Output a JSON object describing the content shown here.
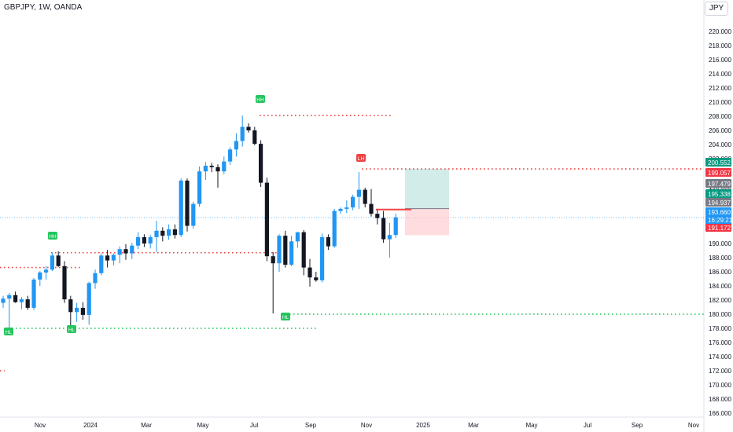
{
  "header": {
    "symbol": "GBPJPY, 1W, OANDA",
    "currency": "JPY"
  },
  "chart_data": {
    "type": "candlestick",
    "symbol": "GBPJPY",
    "interval": "1W",
    "source": "OANDA",
    "ylim": [
      165,
      222
    ],
    "y_ticks": [
      "166.000",
      "168.000",
      "170.000",
      "172.000",
      "174.000",
      "176.000",
      "178.000",
      "180.000",
      "182.000",
      "184.000",
      "186.000",
      "188.000",
      "190.000",
      "192.000",
      "194.000",
      "196.000",
      "198.000",
      "200.000",
      "202.000",
      "204.000",
      "206.000",
      "208.000",
      "210.000",
      "212.000",
      "214.000",
      "216.000",
      "218.000",
      "220.000"
    ],
    "x_ticks": [
      "Nov",
      "2024",
      "Mar",
      "May",
      "Jul",
      "Sep",
      "Nov",
      "2025",
      "Mar",
      "May",
      "Jul",
      "Sep",
      "Nov"
    ],
    "candles": [
      {
        "o": 181.6,
        "h": 182.6,
        "l": 180.9,
        "c": 182.2
      },
      {
        "o": 182.2,
        "h": 183.0,
        "l": 177.7,
        "c": 182.7
      },
      {
        "o": 182.7,
        "h": 183.2,
        "l": 181.6,
        "c": 181.7
      },
      {
        "o": 181.7,
        "h": 182.4,
        "l": 180.7,
        "c": 182.1
      },
      {
        "o": 182.1,
        "h": 182.6,
        "l": 180.6,
        "c": 180.9
      },
      {
        "o": 180.9,
        "h": 185.1,
        "l": 180.6,
        "c": 184.9
      },
      {
        "o": 184.9,
        "h": 186.1,
        "l": 184.0,
        "c": 185.9
      },
      {
        "o": 185.9,
        "h": 186.8,
        "l": 184.9,
        "c": 186.3
      },
      {
        "o": 186.3,
        "h": 188.7,
        "l": 186.1,
        "c": 188.3
      },
      {
        "o": 188.3,
        "h": 188.9,
        "l": 186.7,
        "c": 186.8
      },
      {
        "o": 186.8,
        "h": 187.5,
        "l": 181.6,
        "c": 182.1
      },
      {
        "o": 182.1,
        "h": 182.6,
        "l": 177.6,
        "c": 180.3
      },
      {
        "o": 180.3,
        "h": 181.6,
        "l": 178.9,
        "c": 180.9
      },
      {
        "o": 180.9,
        "h": 181.7,
        "l": 179.2,
        "c": 179.9
      },
      {
        "o": 179.9,
        "h": 184.6,
        "l": 178.5,
        "c": 184.4
      },
      {
        "o": 184.4,
        "h": 186.3,
        "l": 183.6,
        "c": 185.8
      },
      {
        "o": 185.8,
        "h": 188.6,
        "l": 185.5,
        "c": 188.3
      },
      {
        "o": 188.3,
        "h": 189.1,
        "l": 186.6,
        "c": 187.6
      },
      {
        "o": 187.6,
        "h": 188.6,
        "l": 186.9,
        "c": 188.4
      },
      {
        "o": 188.4,
        "h": 189.6,
        "l": 187.2,
        "c": 189.2
      },
      {
        "o": 189.2,
        "h": 189.9,
        "l": 187.7,
        "c": 188.6
      },
      {
        "o": 188.6,
        "h": 190.1,
        "l": 187.8,
        "c": 189.7
      },
      {
        "o": 189.7,
        "h": 191.6,
        "l": 189.2,
        "c": 190.9
      },
      {
        "o": 190.9,
        "h": 191.3,
        "l": 189.5,
        "c": 190.0
      },
      {
        "o": 190.0,
        "h": 191.2,
        "l": 189.3,
        "c": 190.9
      },
      {
        "o": 190.9,
        "h": 193.2,
        "l": 188.8,
        "c": 191.8
      },
      {
        "o": 191.8,
        "h": 192.3,
        "l": 190.3,
        "c": 191.1
      },
      {
        "o": 191.1,
        "h": 192.7,
        "l": 190.5,
        "c": 192.0
      },
      {
        "o": 192.0,
        "h": 192.7,
        "l": 190.7,
        "c": 191.2
      },
      {
        "o": 191.2,
        "h": 199.2,
        "l": 190.9,
        "c": 198.9
      },
      {
        "o": 198.9,
        "h": 199.2,
        "l": 191.7,
        "c": 192.5
      },
      {
        "o": 192.5,
        "h": 195.9,
        "l": 192.1,
        "c": 195.6
      },
      {
        "o": 195.6,
        "h": 200.9,
        "l": 195.2,
        "c": 200.2
      },
      {
        "o": 200.2,
        "h": 201.5,
        "l": 199.0,
        "c": 201.0
      },
      {
        "o": 201.0,
        "h": 201.4,
        "l": 200.1,
        "c": 200.8
      },
      {
        "o": 200.8,
        "h": 201.2,
        "l": 197.9,
        "c": 200.2
      },
      {
        "o": 200.2,
        "h": 202.3,
        "l": 199.8,
        "c": 201.6
      },
      {
        "o": 201.6,
        "h": 203.6,
        "l": 201.1,
        "c": 203.3
      },
      {
        "o": 203.3,
        "h": 205.6,
        "l": 202.3,
        "c": 204.5
      },
      {
        "o": 204.5,
        "h": 208.1,
        "l": 203.7,
        "c": 206.5
      },
      {
        "o": 206.5,
        "h": 207.0,
        "l": 205.7,
        "c": 206.0
      },
      {
        "o": 206.0,
        "h": 206.5,
        "l": 203.9,
        "c": 204.1
      },
      {
        "o": 204.1,
        "h": 204.6,
        "l": 198.0,
        "c": 198.6
      },
      {
        "o": 198.6,
        "h": 199.3,
        "l": 187.5,
        "c": 188.2
      },
      {
        "o": 188.2,
        "h": 188.8,
        "l": 180.1,
        "c": 187.2
      },
      {
        "o": 187.2,
        "h": 191.3,
        "l": 186.0,
        "c": 191.1
      },
      {
        "o": 191.1,
        "h": 191.8,
        "l": 186.6,
        "c": 187.0
      },
      {
        "o": 187.0,
        "h": 191.1,
        "l": 186.8,
        "c": 190.3
      },
      {
        "o": 190.3,
        "h": 191.6,
        "l": 189.4,
        "c": 191.6
      },
      {
        "o": 191.6,
        "h": 191.9,
        "l": 185.5,
        "c": 186.6
      },
      {
        "o": 186.6,
        "h": 187.8,
        "l": 183.9,
        "c": 185.2
      },
      {
        "o": 185.2,
        "h": 186.0,
        "l": 184.6,
        "c": 184.8
      },
      {
        "o": 184.8,
        "h": 191.4,
        "l": 184.5,
        "c": 190.9
      },
      {
        "o": 190.9,
        "h": 191.3,
        "l": 189.1,
        "c": 189.6
      },
      {
        "o": 189.6,
        "h": 194.9,
        "l": 189.4,
        "c": 194.6
      },
      {
        "o": 194.6,
        "h": 195.1,
        "l": 194.2,
        "c": 194.9
      },
      {
        "o": 194.9,
        "h": 196.1,
        "l": 194.3,
        "c": 195.1
      },
      {
        "o": 195.1,
        "h": 196.9,
        "l": 194.7,
        "c": 196.6
      },
      {
        "o": 196.6,
        "h": 200.1,
        "l": 194.9,
        "c": 197.6
      },
      {
        "o": 197.6,
        "h": 197.9,
        "l": 195.1,
        "c": 195.6
      },
      {
        "o": 195.6,
        "h": 197.7,
        "l": 193.8,
        "c": 194.2
      },
      {
        "o": 194.2,
        "h": 194.9,
        "l": 192.7,
        "c": 193.6
      },
      {
        "o": 193.6,
        "h": 194.6,
        "l": 190.1,
        "c": 190.6
      },
      {
        "o": 190.6,
        "h": 192.9,
        "l": 188.0,
        "c": 191.2
      },
      {
        "o": 191.2,
        "h": 194.2,
        "l": 190.8,
        "c": 193.7
      }
    ],
    "swing_labels": [
      {
        "label": "HH",
        "color": "#22c55e"
      },
      {
        "label": "HH",
        "color": "#22c55e"
      },
      {
        "label": "HL",
        "color": "#22c55e"
      },
      {
        "label": "HL",
        "color": "#22c55e"
      },
      {
        "label": "HL",
        "color": "#22c55e"
      },
      {
        "label": "LH",
        "color": "#ef4444"
      }
    ],
    "levels": [
      {
        "y": 208.1,
        "color": "#ef4444"
      },
      {
        "y": 200.55,
        "color": "#ef4444"
      },
      {
        "y": 186.6,
        "color": "#ef4444"
      },
      {
        "y": 188.7,
        "color": "#ef4444"
      },
      {
        "y": 180.0,
        "color": "#22c55e"
      },
      {
        "y": 178.0,
        "color": "#22c55e"
      },
      {
        "y": 172.0,
        "color": "#ef4444"
      }
    ],
    "position": {
      "entry": 194.937,
      "target": 200.552,
      "stop": 191.172
    },
    "price_tags": [
      {
        "value": "200.552",
        "color": "#089981"
      },
      {
        "value": "199.057",
        "color": "#f23645"
      },
      {
        "value": "197.479",
        "color": "#787b86"
      },
      {
        "value": "195.338",
        "color": "#089981"
      },
      {
        "value": "194.937",
        "color": "#787b86"
      },
      {
        "value": "193.660",
        "color": "#2196f3"
      },
      {
        "value": "191.172",
        "color": "#f23645"
      }
    ],
    "countdown": "16:29:21",
    "up_color": "#2196f3",
    "down_color": "#131722"
  }
}
